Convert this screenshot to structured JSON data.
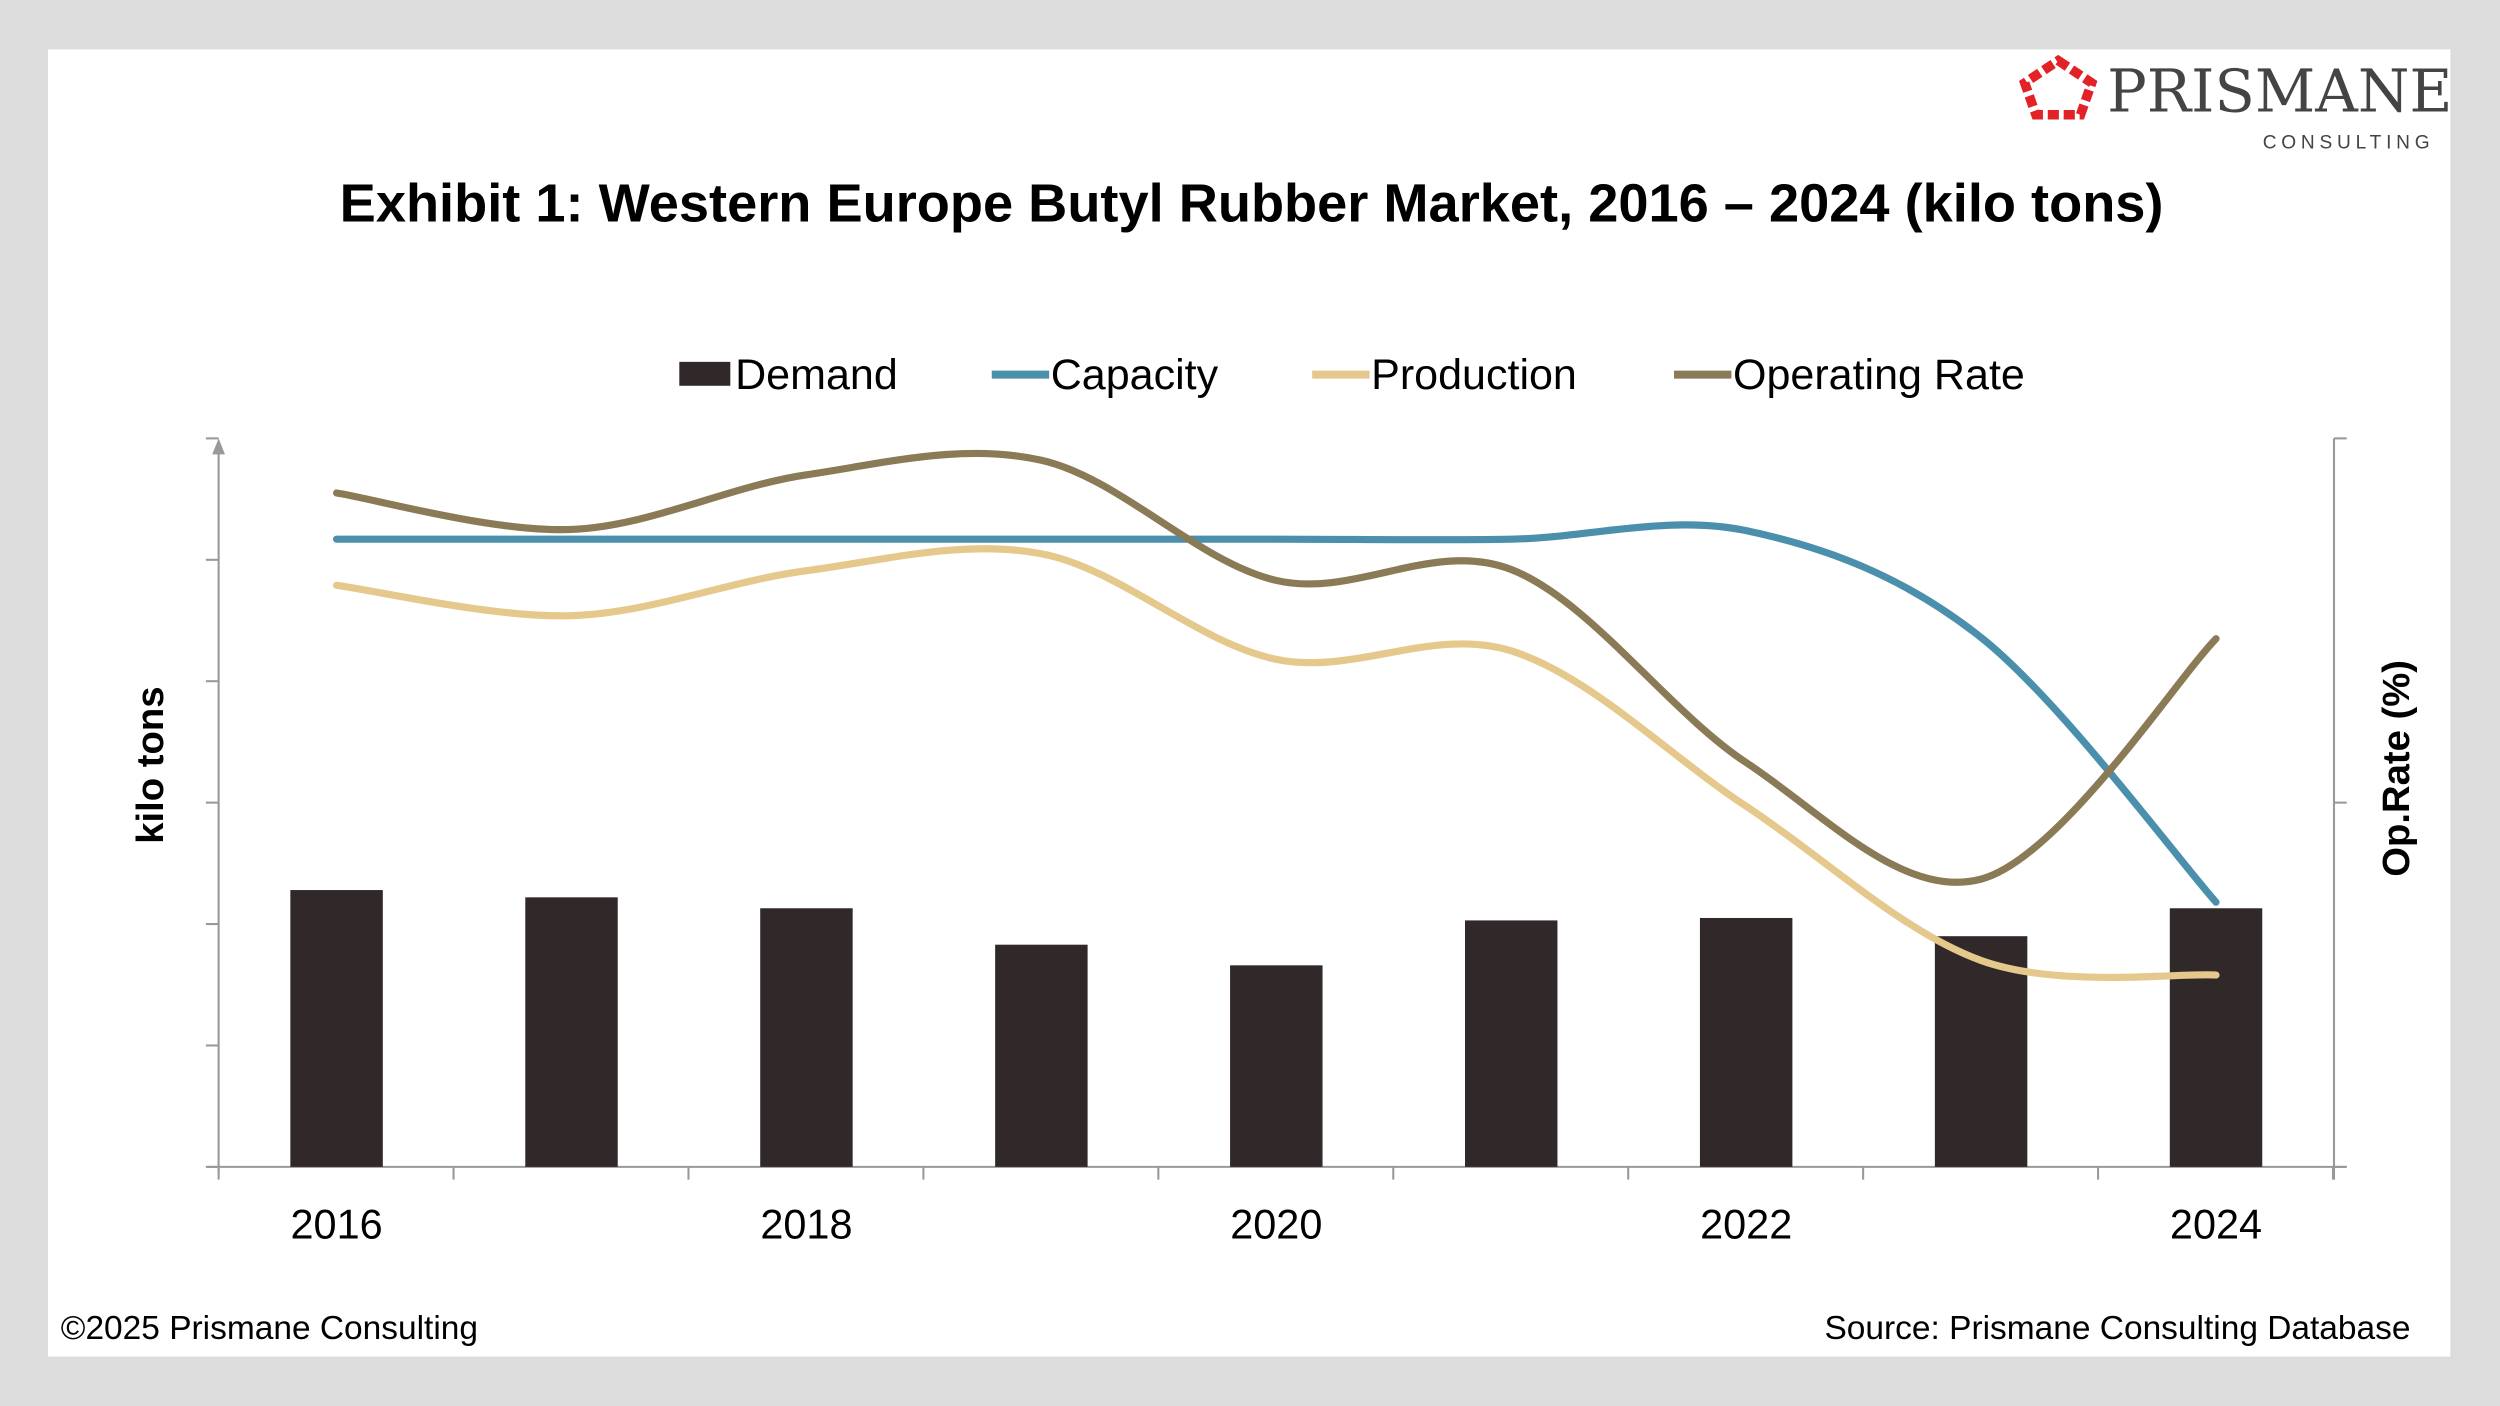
{
  "logo": {
    "name": "PRISMANE",
    "tagline": "CONSULTING",
    "color": "#e32227"
  },
  "footer": {
    "copyright": "©2025 Prismane Consulting",
    "source": "Source: Prismane Consulting Database"
  },
  "chart_data": {
    "type": "bar+line",
    "title": "Exhibit 1: Western Europe Butyl Rubber Market, 2016 – 2024 (kilo tons)",
    "ylabel": "kilo tons",
    "y2label": "Op.Rate (%)",
    "xlabel": "",
    "note": "Axes have no printed tick values; values are estimated in units of unlabeled tick intervals",
    "ylim": [
      0,
      6
    ],
    "y2lim": [
      0,
      2
    ],
    "categories": [
      "2016",
      "2017",
      "2018",
      "2019",
      "2020",
      "2021",
      "2022",
      "2023",
      "2024"
    ],
    "x_tick_labels": [
      "2016",
      "2018",
      "2020",
      "2022",
      "2024"
    ],
    "legend_position": "top",
    "grid": false,
    "series": [
      {
        "name": "Demand",
        "type": "bar",
        "axis": "left",
        "color": "#312829",
        "values": [
          2.28,
          2.22,
          2.13,
          1.83,
          1.66,
          2.03,
          2.05,
          1.9,
          2.13
        ]
      },
      {
        "name": "Capacity",
        "type": "line",
        "axis": "left",
        "color": "#4a8fab",
        "values": [
          5.17,
          5.17,
          5.17,
          5.17,
          5.17,
          5.17,
          5.24,
          4.36,
          2.18
        ]
      },
      {
        "name": "Production",
        "type": "line",
        "axis": "left",
        "color": "#e5c88b",
        "values": [
          4.79,
          4.54,
          4.91,
          5.05,
          4.18,
          4.25,
          2.97,
          1.7,
          1.58
        ]
      },
      {
        "name": "Operating Rate",
        "type": "line",
        "axis": "right",
        "color": "#8a7a56",
        "values": [
          1.85,
          1.75,
          1.9,
          1.94,
          1.61,
          1.64,
          1.11,
          0.79,
          1.45
        ]
      }
    ]
  }
}
